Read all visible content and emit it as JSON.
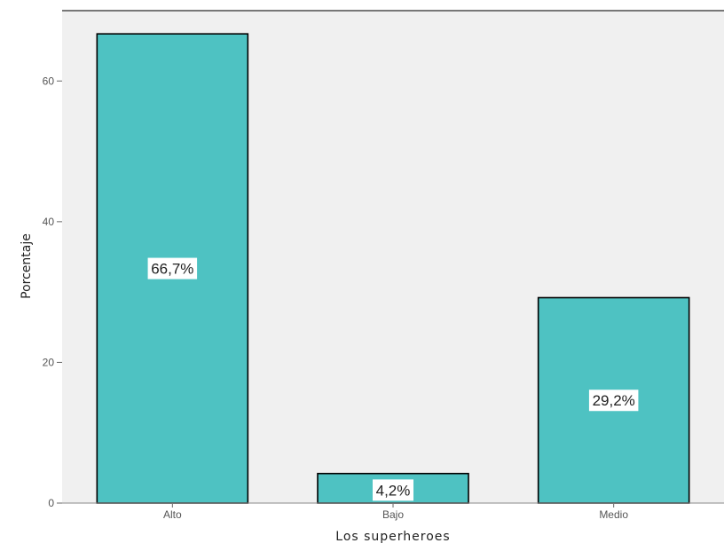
{
  "chart_data": {
    "type": "bar",
    "categories": [
      "Alto",
      "Bajo",
      "Medio"
    ],
    "values": [
      66.7,
      4.2,
      29.2
    ],
    "data_labels": [
      "66,7%",
      "4,2%",
      "29,2%"
    ],
    "xlabel": "Los superheroes",
    "ylabel": "Porcentaje",
    "ylim": [
      0,
      70
    ],
    "yticks": [
      0,
      20,
      40,
      60
    ],
    "ytick_labels": [
      "0",
      "20",
      "40",
      "60"
    ],
    "grid": false,
    "bar_color": "#4ec2c2",
    "plot_background": "#f0f0f0",
    "bar_outline_color": "#000000"
  }
}
